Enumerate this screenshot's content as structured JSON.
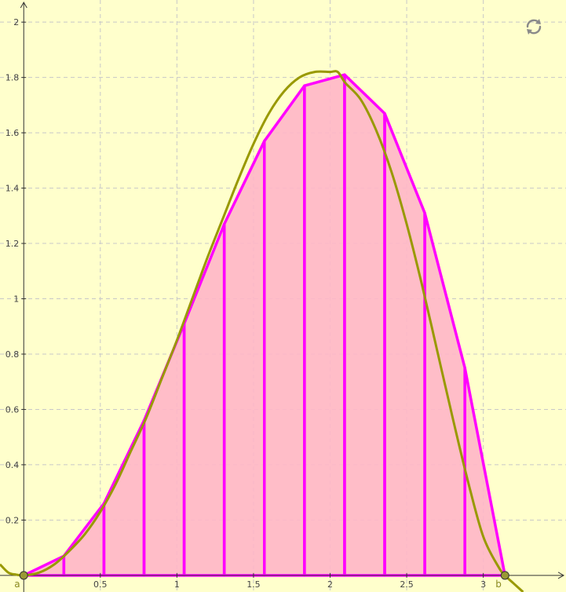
{
  "chart_data": {
    "type": "area",
    "xlim": [
      -0.155,
      3.54
    ],
    "ylim": [
      -0.06,
      2.08
    ],
    "x_ticks": [
      "0.5",
      "1",
      "1.5",
      "2",
      "2.5",
      "3"
    ],
    "y_ticks": [
      "0.2",
      "0.4",
      "0.6",
      "0.8",
      "1",
      "1.2",
      "1.4",
      "1.6",
      "1.8",
      "2"
    ],
    "grid": true,
    "function_samples": {
      "x": [
        -0.155,
        -0.1,
        -0.05,
        0,
        0.1,
        0.2,
        0.3,
        0.4,
        0.5,
        0.6,
        0.7,
        0.8,
        0.9,
        1.0,
        1.1,
        1.2,
        1.3,
        1.4,
        1.5,
        1.6,
        1.7,
        1.8,
        1.9,
        2.0,
        2.05,
        2.1,
        2.2,
        2.3,
        2.4,
        2.5,
        2.6,
        2.7,
        2.8,
        2.9,
        3.0,
        3.1,
        3.1416,
        3.2,
        3.26
      ],
      "y": [
        0.04,
        0.01,
        0.003,
        0,
        0.01,
        0.04,
        0.09,
        0.15,
        0.23,
        0.33,
        0.45,
        0.57,
        0.71,
        0.85,
        1.0,
        1.15,
        1.29,
        1.43,
        1.56,
        1.67,
        1.75,
        1.8,
        1.82,
        1.82,
        1.82,
        1.78,
        1.72,
        1.61,
        1.46,
        1.27,
        1.05,
        0.81,
        0.57,
        0.34,
        0.14,
        0.03,
        0,
        -0.03,
        -0.06
      ]
    },
    "trapezoid_x": [
      0,
      0.2618,
      0.5236,
      0.7854,
      1.0472,
      1.309,
      1.5708,
      1.8326,
      2.0944,
      2.3562,
      2.618,
      2.8798,
      3.1416
    ],
    "trapezoid_y": [
      0,
      0.07,
      0.26,
      0.56,
      0.91,
      1.27,
      1.57,
      1.77,
      1.81,
      1.67,
      1.31,
      0.75,
      0
    ],
    "points": [
      {
        "label": "a",
        "x": 0,
        "y": 0
      },
      {
        "label": "b",
        "x": 3.1416,
        "y": 0
      }
    ],
    "colors": {
      "background": "#ffffcc",
      "grid": "#c8c8c8",
      "function": "#999900",
      "trapezoid_fill": "#ffb6c8",
      "trapezoid_stroke": "#ff00ff",
      "point_fill": "#999933"
    }
  },
  "toolbar": {
    "reset_icon": "refresh-icon"
  }
}
